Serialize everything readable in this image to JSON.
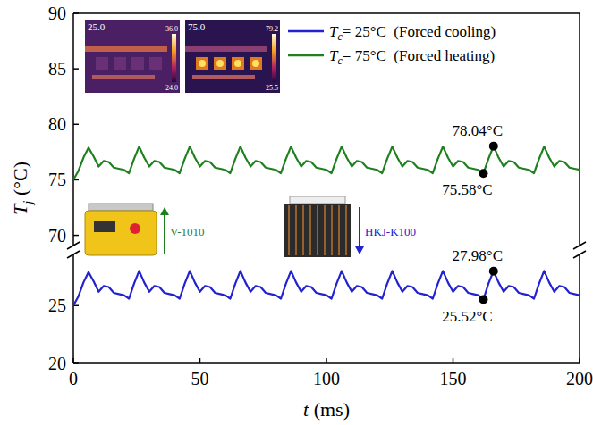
{
  "chart_data": [
    {
      "type": "line",
      "y_label": "Tj (°C)",
      "xlim": [
        0,
        200
      ],
      "ylim": [
        69,
        90
      ],
      "yticks": [
        70,
        75,
        80,
        85,
        90
      ],
      "tick_labels": "y",
      "grid": false,
      "legend": "top-right",
      "x": [
        0,
        2,
        4,
        6,
        8,
        10,
        12,
        14,
        16,
        18,
        20,
        22,
        24,
        26,
        28,
        30,
        32,
        34,
        36,
        38,
        40,
        42,
        44,
        46,
        48,
        50,
        52,
        54,
        56,
        58,
        60,
        62,
        64,
        66,
        68,
        70,
        72,
        74,
        76,
        78,
        80,
        82,
        84,
        86,
        88,
        90,
        92,
        94,
        96,
        98,
        100,
        102,
        104,
        106,
        108,
        110,
        112,
        114,
        116,
        118,
        120,
        122,
        124,
        126,
        128,
        130,
        132,
        134,
        136,
        138,
        140,
        142,
        144,
        146,
        148,
        150,
        152,
        154,
        156,
        158,
        160,
        162,
        164,
        166,
        168,
        170,
        172,
        174,
        176,
        178,
        180,
        182,
        184,
        186,
        188,
        190,
        192,
        194,
        196,
        198,
        200
      ],
      "series": [
        {
          "name": "Tc= 75°C  (Forced heating)",
          "color": "#1f801f",
          "line_style": "solid",
          "values": [
            75.0,
            75.8,
            77.0,
            77.9,
            77.1,
            76.2,
            76.7,
            76.6,
            76.1,
            76.0,
            75.9,
            75.6,
            76.9,
            78.0,
            77.0,
            76.2,
            76.7,
            76.6,
            76.1,
            76.0,
            75.9,
            75.6,
            76.9,
            78.0,
            77.0,
            76.2,
            76.7,
            76.6,
            76.1,
            76.0,
            75.9,
            75.6,
            76.9,
            78.0,
            77.0,
            76.2,
            76.7,
            76.6,
            76.1,
            76.0,
            75.9,
            75.6,
            76.9,
            78.0,
            77.0,
            76.2,
            76.7,
            76.6,
            76.1,
            76.0,
            75.9,
            75.6,
            76.9,
            78.0,
            77.0,
            76.2,
            76.7,
            76.6,
            76.1,
            76.0,
            75.9,
            75.6,
            76.9,
            78.0,
            77.0,
            76.2,
            76.7,
            76.6,
            76.1,
            76.0,
            75.9,
            75.6,
            76.9,
            78.0,
            77.0,
            76.2,
            76.7,
            76.6,
            76.1,
            76.0,
            75.9,
            75.58,
            76.9,
            78.04,
            77.0,
            76.2,
            76.7,
            76.6,
            76.1,
            76.0,
            75.9,
            75.6,
            76.9,
            78.0,
            77.0,
            76.2,
            76.7,
            76.6,
            76.1,
            76.0,
            75.9
          ]
        }
      ],
      "annotations": [
        {
          "text": "78.04°C",
          "x": 166,
          "y": 78.04,
          "marker": "above"
        },
        {
          "text": "75.58°C",
          "x": 162,
          "y": 75.58,
          "marker": "below"
        }
      ]
    },
    {
      "type": "line",
      "x_label": "t (ms)",
      "xlim": [
        0,
        200
      ],
      "xticks": [
        0,
        50,
        100,
        150,
        200
      ],
      "ylim": [
        20,
        29.5
      ],
      "yticks": [
        20,
        25
      ],
      "grid": false,
      "x": [
        0,
        2,
        4,
        6,
        8,
        10,
        12,
        14,
        16,
        18,
        20,
        22,
        24,
        26,
        28,
        30,
        32,
        34,
        36,
        38,
        40,
        42,
        44,
        46,
        48,
        50,
        52,
        54,
        56,
        58,
        60,
        62,
        64,
        66,
        68,
        70,
        72,
        74,
        76,
        78,
        80,
        82,
        84,
        86,
        88,
        90,
        92,
        94,
        96,
        98,
        100,
        102,
        104,
        106,
        108,
        110,
        112,
        114,
        116,
        118,
        120,
        122,
        124,
        126,
        128,
        130,
        132,
        134,
        136,
        138,
        140,
        142,
        144,
        146,
        148,
        150,
        152,
        154,
        156,
        158,
        160,
        162,
        164,
        166,
        168,
        170,
        172,
        174,
        176,
        178,
        180,
        182,
        184,
        186,
        188,
        190,
        192,
        194,
        196,
        198,
        200
      ],
      "series": [
        {
          "name": "Tc= 25°C  (Forced cooling)",
          "color": "#2222d0",
          "line_style": "solid",
          "values": [
            25.0,
            25.8,
            27.0,
            27.9,
            27.1,
            26.2,
            26.7,
            26.6,
            26.1,
            26.0,
            25.9,
            25.6,
            26.9,
            28.0,
            27.0,
            26.2,
            26.7,
            26.6,
            26.1,
            26.0,
            25.9,
            25.6,
            26.9,
            28.0,
            27.0,
            26.2,
            26.7,
            26.6,
            26.1,
            26.0,
            25.9,
            25.6,
            26.9,
            28.0,
            27.0,
            26.2,
            26.7,
            26.6,
            26.1,
            26.0,
            25.9,
            25.6,
            26.9,
            28.0,
            27.0,
            26.2,
            26.7,
            26.6,
            26.1,
            26.0,
            25.9,
            25.6,
            26.9,
            28.0,
            27.0,
            26.2,
            26.7,
            26.6,
            26.1,
            26.0,
            25.9,
            25.6,
            26.9,
            28.0,
            27.0,
            26.2,
            26.7,
            26.6,
            26.1,
            26.0,
            25.9,
            25.6,
            26.9,
            28.0,
            27.0,
            26.2,
            26.7,
            26.6,
            26.1,
            26.0,
            25.9,
            25.52,
            26.9,
            27.98,
            27.0,
            26.2,
            26.7,
            26.6,
            26.1,
            26.0,
            25.9,
            25.6,
            26.9,
            28.0,
            27.0,
            26.2,
            26.7,
            26.6,
            26.1,
            26.0,
            25.9
          ]
        }
      ],
      "annotations": [
        {
          "text": "27.98°C",
          "x": 166,
          "y": 27.98,
          "marker": "above"
        },
        {
          "text": "25.52°C",
          "x": 162,
          "y": 25.52,
          "marker": "below"
        }
      ]
    }
  ],
  "insets": {
    "thermal_images": [
      {
        "reading": "25.0",
        "max": "36.0",
        "min": "24.0"
      },
      {
        "reading": "75.0",
        "max": "79.2",
        "min": "25.5"
      }
    ],
    "equipment": [
      {
        "label": "V-1010",
        "direction": "up",
        "color": "#1f801f"
      },
      {
        "label": "HKJ-K100",
        "direction": "down",
        "color": "#2222d0"
      }
    ]
  }
}
